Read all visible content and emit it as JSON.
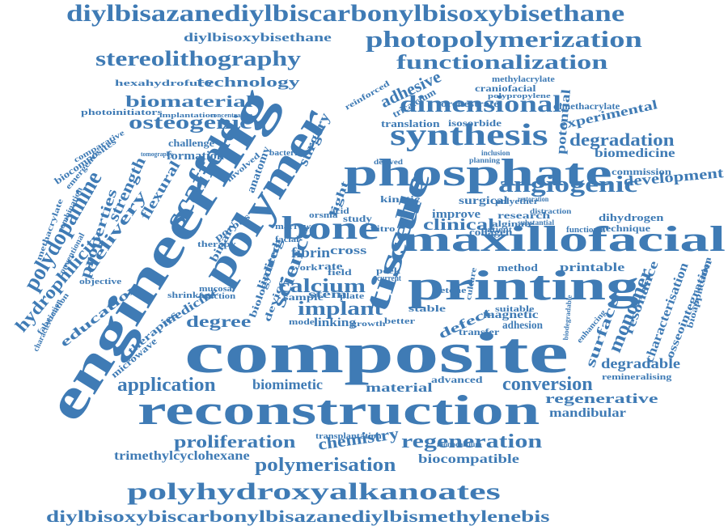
{
  "cloud": {
    "color": "#3f7bb5",
    "words": [
      "diylbisazanediylbiscarbonylbisoxybisethane",
      "photopolymerization",
      "diylbisoxybisethane",
      "stereolithography",
      "functionalization",
      "technology",
      "hexahydrofuro",
      "biomaterial",
      "adhesive",
      "dimensional",
      "osteogenic",
      "synthesis",
      "methylacrylate",
      "craniofacial",
      "dimethacrylate",
      "experimental",
      "photoinitiators",
      "translation",
      "isosorbide",
      "degradation",
      "biomedicine",
      "challenge",
      "formation",
      "scaffold",
      "flexural",
      "strength",
      "polydopamine",
      "phosphate",
      "commission",
      "development",
      "potential",
      "angiogenic",
      "delivery",
      "bone",
      "polymer",
      "engineering",
      "maxillofacial",
      "tissue",
      "improve",
      "surgical",
      "kinetic",
      "clinical",
      "polyether",
      "research",
      "dihydrogen",
      "collagen",
      "technique",
      "functional",
      "properties",
      "hydrophilicity",
      "fibrin",
      "cells",
      "cross",
      "printable",
      "rate",
      "field",
      "science",
      "calcium",
      "printing",
      "monomer",
      "resonance",
      "characterisation",
      "osseointegration",
      "bioapplication",
      "education",
      "medicine",
      "implant",
      "stem",
      "sample",
      "surface",
      "degree",
      "defect",
      "magnetic",
      "adhesion",
      "transfer",
      "composite",
      "therapies",
      "microwave",
      "degradable",
      "application",
      "biomimetic",
      "material",
      "advanced",
      "conversion",
      "remineralising",
      "regenerative",
      "reconstruction",
      "mandibular",
      "proliferation",
      "chemistry",
      "regeneration",
      "trimethylcyclohexane",
      "polymerisation",
      "biocompatible",
      "polyhydroxyalkanoates",
      "diylbisoxybiscarbonylbisazanediylbismethylenebis",
      "anatomy",
      "surgery",
      "mucosal",
      "function",
      "shrinkage",
      "limited",
      "drug",
      "device",
      "biology",
      "linking",
      "method",
      "stable",
      "peek",
      "current",
      "culture",
      "biocomposites",
      "comparative",
      "combination",
      "conventional",
      "objective",
      "fabrication",
      "characterization",
      "methacrylate",
      "emergence",
      "involved",
      "reinforced",
      "bacteria",
      "tricalcium",
      "orchestrate",
      "polypropylene",
      "inclusion",
      "planning",
      "distraction",
      "alginate",
      "patient",
      "substantial",
      "light",
      "vitro",
      "study",
      "acid",
      "orsma",
      "marrow",
      "facial",
      "binary",
      "therapy",
      "porous",
      "plate",
      "work",
      "model",
      "growth",
      "better",
      "ketone",
      "suitable",
      "biodegradable",
      "enhancing",
      "transplantation",
      "monocalcium",
      "implantation",
      "concentration",
      "tomography",
      "derived",
      "restoration"
    ]
  }
}
